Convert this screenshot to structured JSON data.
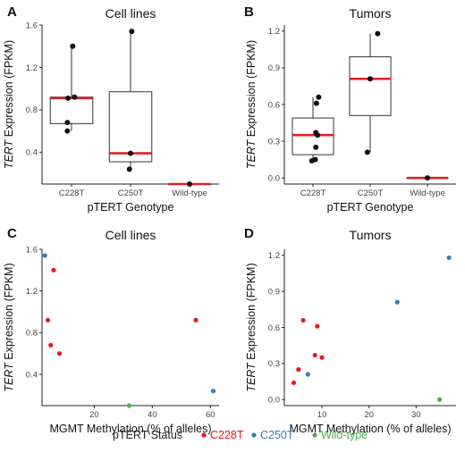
{
  "legend": {
    "title": "pTERT Status",
    "items": [
      {
        "label": "C228T",
        "color": "#e41a1c"
      },
      {
        "label": "C250T",
        "color": "#377eb8"
      },
      {
        "label": "Wild-type",
        "color": "#4daf4a"
      }
    ]
  },
  "chart_data": [
    {
      "panel": "A",
      "type": "box",
      "title": "Cell lines",
      "xlabel": "pTERT Genotype",
      "ylabel_italic": "TERT",
      "ylabel": " Expression (FPKM)",
      "ylim": [
        0.1,
        1.6
      ],
      "yticks": [
        0.4,
        0.8,
        1.2,
        1.6
      ],
      "yticklabels": [
        "0.4",
        "0.8",
        "1.2",
        "1.6"
      ],
      "categories": [
        "C228T",
        "C250T",
        "Wild-type"
      ],
      "boxes": [
        {
          "q1": 0.67,
          "median": 0.91,
          "q3": 0.92,
          "whisker_low": 0.6,
          "whisker_high": 1.4
        },
        {
          "q1": 0.31,
          "median": 0.39,
          "q3": 0.97,
          "whisker_low": 0.24,
          "whisker_high": 1.54
        },
        {
          "q1": 0.1,
          "median": 0.1,
          "q3": 0.1,
          "whisker_low": 0.1,
          "whisker_high": 0.1
        }
      ],
      "points": [
        {
          "category": "C228T",
          "y": 1.4,
          "jitter": 0.02
        },
        {
          "category": "C228T",
          "y": 0.92,
          "jitter": 0.05
        },
        {
          "category": "C228T",
          "y": 0.91,
          "jitter": -0.06
        },
        {
          "category": "C228T",
          "y": 0.68,
          "jitter": -0.07
        },
        {
          "category": "C228T",
          "y": 0.6,
          "jitter": -0.07
        },
        {
          "category": "C250T",
          "y": 1.54,
          "jitter": 0.02
        },
        {
          "category": "C250T",
          "y": 0.39,
          "jitter": 0.0
        },
        {
          "category": "C250T",
          "y": 0.24,
          "jitter": -0.02
        },
        {
          "category": "Wild-type",
          "y": 0.1,
          "jitter": 0.0
        }
      ]
    },
    {
      "panel": "B",
      "type": "box",
      "title": "Tumors",
      "xlabel": "pTERT Genotype",
      "ylabel_italic": "TERT",
      "ylabel": " Expression (FPKM)",
      "ylim": [
        -0.05,
        1.25
      ],
      "yticks": [
        0.0,
        0.3,
        0.6,
        0.9,
        1.2
      ],
      "yticklabels": [
        "0.0",
        "0.3",
        "0.6",
        "0.9",
        "1.2"
      ],
      "categories": [
        "C228T",
        "C250T",
        "Wild-type"
      ],
      "boxes": [
        {
          "q1": 0.19,
          "median": 0.35,
          "q3": 0.49,
          "whisker_low": 0.14,
          "whisker_high": 0.66
        },
        {
          "q1": 0.51,
          "median": 0.81,
          "q3": 0.99,
          "whisker_low": 0.21,
          "whisker_high": 1.18
        },
        {
          "q1": 0.0,
          "median": 0.0,
          "q3": 0.0,
          "whisker_low": 0.0,
          "whisker_high": 0.0
        }
      ],
      "points": [
        {
          "category": "C228T",
          "y": 0.66,
          "jitter": 0.1
        },
        {
          "category": "C228T",
          "y": 0.61,
          "jitter": 0.06
        },
        {
          "category": "C228T",
          "y": 0.37,
          "jitter": 0.05
        },
        {
          "category": "C228T",
          "y": 0.35,
          "jitter": 0.08
        },
        {
          "category": "C228T",
          "y": 0.25,
          "jitter": 0.05
        },
        {
          "category": "C228T",
          "y": 0.15,
          "jitter": 0.04
        },
        {
          "category": "C228T",
          "y": 0.14,
          "jitter": -0.02
        },
        {
          "category": "C250T",
          "y": 1.18,
          "jitter": 0.13
        },
        {
          "category": "C250T",
          "y": 0.81,
          "jitter": 0.0
        },
        {
          "category": "C250T",
          "y": 0.21,
          "jitter": -0.05
        },
        {
          "category": "Wild-type",
          "y": 0.0,
          "jitter": 0.0
        }
      ]
    },
    {
      "panel": "C",
      "type": "scatter",
      "title": "Cell lines",
      "xlabel": "MGMT Methylation (% of alleles)",
      "ylabel_italic": "TERT",
      "ylabel": " Expression (FPKM)",
      "xlim": [
        2,
        63
      ],
      "xticks": [
        20,
        40,
        60
      ],
      "xticklabels": [
        "20",
        "40",
        "60"
      ],
      "ylim": [
        0.1,
        1.6
      ],
      "yticks": [
        0.4,
        0.8,
        1.2,
        1.6
      ],
      "yticklabels": [
        "0.4",
        "0.8",
        "1.2",
        "1.6"
      ],
      "points": [
        {
          "x": 3,
          "y": 1.54,
          "status": "C250T"
        },
        {
          "x": 6,
          "y": 1.4,
          "status": "C228T"
        },
        {
          "x": 4,
          "y": 0.92,
          "status": "C228T"
        },
        {
          "x": 5,
          "y": 0.68,
          "status": "C228T"
        },
        {
          "x": 8,
          "y": 0.6,
          "status": "C228T"
        },
        {
          "x": 55,
          "y": 0.92,
          "status": "C228T"
        },
        {
          "x": 61,
          "y": 0.24,
          "status": "C250T"
        },
        {
          "x": 32,
          "y": 0.1,
          "status": "Wild-type"
        }
      ]
    },
    {
      "panel": "D",
      "type": "scatter",
      "title": "Tumors",
      "xlabel": "MGMT Methylation (% of alleles)",
      "ylabel_italic": "TERT",
      "ylabel": " Expression (FPKM)",
      "xlim": [
        2,
        38.5
      ],
      "xticks": [
        10,
        20,
        30
      ],
      "xticklabels": [
        "10",
        "20",
        "30"
      ],
      "ylim": [
        -0.05,
        1.25
      ],
      "yticks": [
        0.0,
        0.3,
        0.6,
        0.9,
        1.2
      ],
      "yticklabels": [
        "0.0",
        "0.3",
        "0.6",
        "0.9",
        "1.2"
      ],
      "points": [
        {
          "x": 4,
          "y": 0.14,
          "status": "C228T"
        },
        {
          "x": 5,
          "y": 0.25,
          "status": "C228T"
        },
        {
          "x": 6,
          "y": 0.66,
          "status": "C228T"
        },
        {
          "x": 8.5,
          "y": 0.37,
          "status": "C228T"
        },
        {
          "x": 9,
          "y": 0.61,
          "status": "C228T"
        },
        {
          "x": 10,
          "y": 0.35,
          "status": "C228T"
        },
        {
          "x": 7,
          "y": 0.21,
          "status": "C250T"
        },
        {
          "x": 26,
          "y": 0.81,
          "status": "C250T"
        },
        {
          "x": 37,
          "y": 1.18,
          "status": "C250T"
        },
        {
          "x": 35,
          "y": 0.0,
          "status": "Wild-type"
        }
      ]
    }
  ]
}
